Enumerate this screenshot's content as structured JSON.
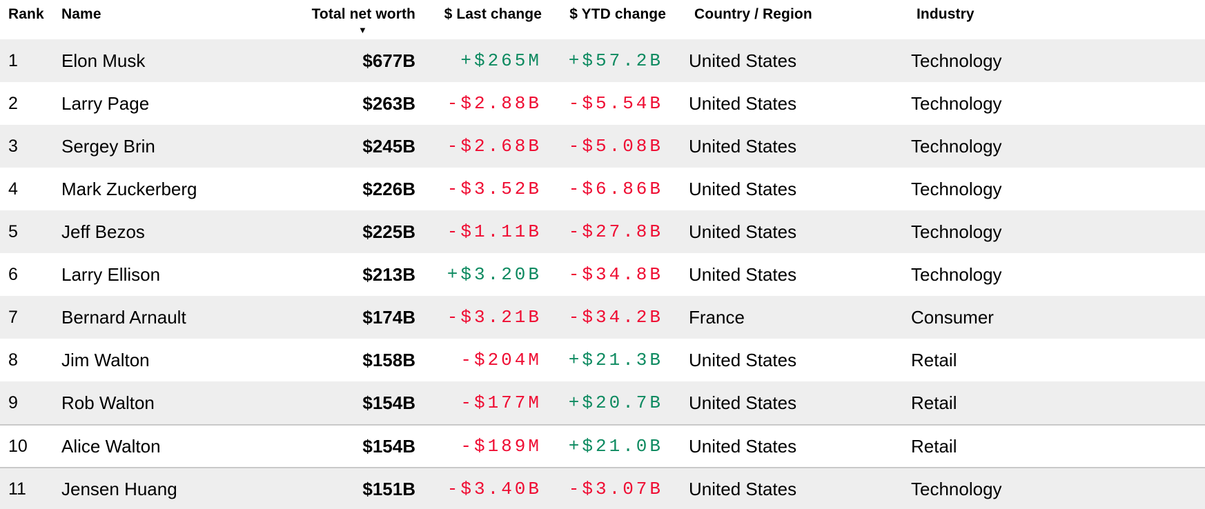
{
  "table": {
    "columns": [
      {
        "label": "Rank"
      },
      {
        "label": "Name"
      },
      {
        "label": "Total net worth"
      },
      {
        "label": "$ Last change"
      },
      {
        "label": "$ YTD change"
      },
      {
        "label": "Country / Region"
      },
      {
        "label": "Industry"
      }
    ],
    "sort": {
      "column": "Total net worth",
      "direction": "descending",
      "icon": "▼"
    },
    "rows": [
      {
        "rank": "1",
        "name": "Elon Musk",
        "net_worth": "$677B",
        "last_change": "+$265M",
        "ytd_change": "+$57.2B",
        "country": "United States",
        "industry": "Technology"
      },
      {
        "rank": "2",
        "name": "Larry Page",
        "net_worth": "$263B",
        "last_change": "-$2.88B",
        "ytd_change": "-$5.54B",
        "country": "United States",
        "industry": "Technology"
      },
      {
        "rank": "3",
        "name": "Sergey Brin",
        "net_worth": "$245B",
        "last_change": "-$2.68B",
        "ytd_change": "-$5.08B",
        "country": "United States",
        "industry": "Technology"
      },
      {
        "rank": "4",
        "name": "Mark Zuckerberg",
        "net_worth": "$226B",
        "last_change": "-$3.52B",
        "ytd_change": "-$6.86B",
        "country": "United States",
        "industry": "Technology"
      },
      {
        "rank": "5",
        "name": "Jeff Bezos",
        "net_worth": "$225B",
        "last_change": "-$1.11B",
        "ytd_change": "-$27.8B",
        "country": "United States",
        "industry": "Technology"
      },
      {
        "rank": "6",
        "name": "Larry Ellison",
        "net_worth": "$213B",
        "last_change": "+$3.20B",
        "ytd_change": "-$34.8B",
        "country": "United States",
        "industry": "Technology"
      },
      {
        "rank": "7",
        "name": "Bernard Arnault",
        "net_worth": "$174B",
        "last_change": "-$3.21B",
        "ytd_change": "-$34.2B",
        "country": "France",
        "industry": "Consumer"
      },
      {
        "rank": "8",
        "name": "Jim Walton",
        "net_worth": "$158B",
        "last_change": "-$204M",
        "ytd_change": "+$21.3B",
        "country": "United States",
        "industry": "Retail"
      },
      {
        "rank": "9",
        "name": "Rob Walton",
        "net_worth": "$154B",
        "last_change": "-$177M",
        "ytd_change": "+$20.7B",
        "country": "United States",
        "industry": "Retail"
      },
      {
        "rank": "10",
        "name": "Alice Walton",
        "net_worth": "$154B",
        "last_change": "-$189M",
        "ytd_change": "+$21.0B",
        "country": "United States",
        "industry": "Retail"
      },
      {
        "rank": "11",
        "name": "Jensen Huang",
        "net_worth": "$151B",
        "last_change": "-$3.40B",
        "ytd_change": "-$3.07B",
        "country": "United States",
        "industry": "Technology"
      }
    ]
  },
  "colors": {
    "positive": "#0d8a60",
    "negative": "#ef0d33",
    "row_stripe": "#eeeeee",
    "divider": "#c9c9c9"
  }
}
